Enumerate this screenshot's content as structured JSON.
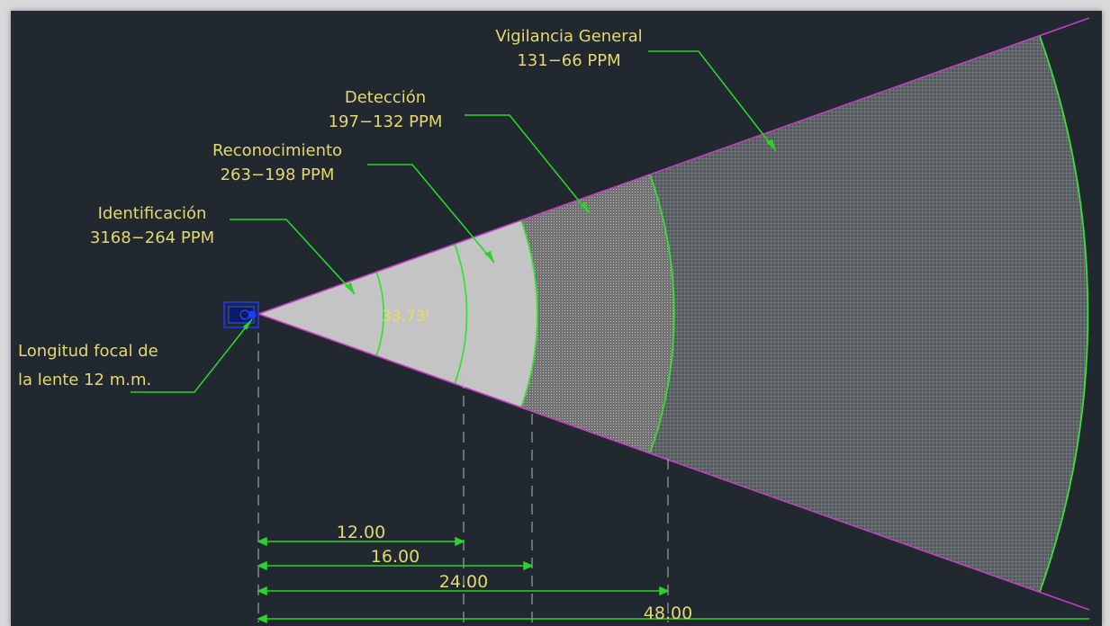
{
  "camera_label": {
    "line1": "Longitud focal de",
    "line2": "la lente 12 m.m."
  },
  "zones": [
    {
      "name": "Identificación",
      "range": "3168−264 PPM",
      "distance": 12.0
    },
    {
      "name": "Reconocimiento",
      "range": "263−198 PPM",
      "distance": 16.0
    },
    {
      "name": "Detección",
      "range": "197−132 PPM",
      "distance": 24.0
    },
    {
      "name": "Vigilancia General",
      "range": "131−66 PPM",
      "distance": 48.0
    }
  ],
  "angle_label": "33.73'",
  "dimensions": [
    "12.00",
    "16.00",
    "24.00",
    "48.00"
  ],
  "colors": {
    "background": "#212830",
    "label_text": "#e3d870",
    "leader": "#2bd42b",
    "boundary": "#c040c0",
    "arc": "#36e036",
    "zone1_fill": "#c4c4c4",
    "zone2_fill": "#9a9a9a",
    "zone3_fill": "#6e6e6e",
    "zone4_fill": "#5a5a5a",
    "camera": "#1a3aff",
    "angle_text": "#f0e24a"
  }
}
